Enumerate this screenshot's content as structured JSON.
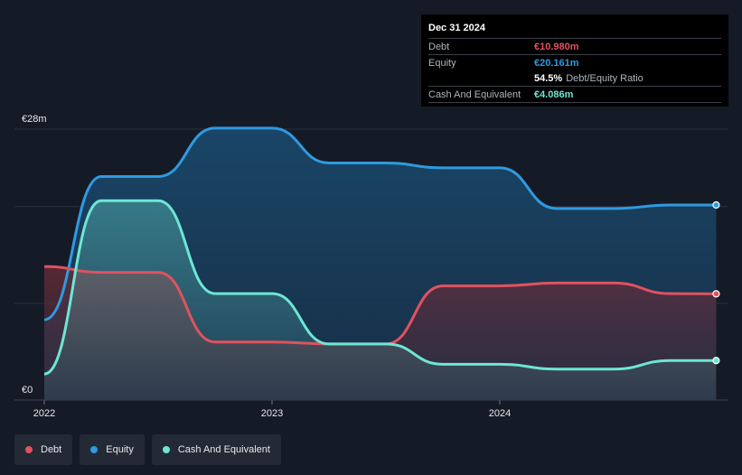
{
  "chart_data": {
    "type": "area",
    "x_axis_labels": [
      "2022",
      "2023",
      "2024"
    ],
    "y_axis_labels": [
      "€28m",
      "€0"
    ],
    "ylim": [
      0,
      28
    ],
    "x_range": [
      2021.95,
      2024.95
    ],
    "unit": "€m",
    "grid": true,
    "legend_position": "bottom-left",
    "series": [
      {
        "name": "Debt",
        "color": "#e0525f",
        "points": [
          [
            2022.0,
            13.8
          ],
          [
            2022.25,
            13.2
          ],
          [
            2022.5,
            13.2
          ],
          [
            2022.75,
            6.0
          ],
          [
            2023.0,
            6.0
          ],
          [
            2023.25,
            5.8
          ],
          [
            2023.5,
            5.8
          ],
          [
            2023.75,
            11.8
          ],
          [
            2024.0,
            11.8
          ],
          [
            2024.25,
            12.1
          ],
          [
            2024.5,
            12.1
          ],
          [
            2024.75,
            11.0
          ],
          [
            2024.95,
            10.98
          ]
        ]
      },
      {
        "name": "Equity",
        "color": "#2f9ae0",
        "points": [
          [
            2022.0,
            8.3
          ],
          [
            2022.25,
            23.1
          ],
          [
            2022.5,
            23.1
          ],
          [
            2022.75,
            28.1
          ],
          [
            2023.0,
            28.1
          ],
          [
            2023.25,
            24.5
          ],
          [
            2023.5,
            24.5
          ],
          [
            2023.75,
            24.0
          ],
          [
            2024.0,
            24.0
          ],
          [
            2024.25,
            19.8
          ],
          [
            2024.5,
            19.8
          ],
          [
            2024.75,
            20.16
          ],
          [
            2024.95,
            20.161
          ]
        ]
      },
      {
        "name": "Cash And Equivalent",
        "color": "#6ee6d4",
        "points": [
          [
            2022.0,
            2.7
          ],
          [
            2022.25,
            20.6
          ],
          [
            2022.5,
            20.6
          ],
          [
            2022.75,
            11.0
          ],
          [
            2023.0,
            11.0
          ],
          [
            2023.25,
            5.8
          ],
          [
            2023.5,
            5.8
          ],
          [
            2023.75,
            3.7
          ],
          [
            2024.0,
            3.7
          ],
          [
            2024.25,
            3.2
          ],
          [
            2024.5,
            3.2
          ],
          [
            2024.75,
            4.086
          ],
          [
            2024.95,
            4.086
          ]
        ]
      }
    ]
  },
  "tooltip": {
    "date": "Dec 31 2024",
    "rows": [
      {
        "label": "Debt",
        "value": "€10.980m",
        "color": "#e0525f"
      },
      {
        "label": "Equity",
        "value": "€20.161m",
        "color": "#2f9ae0"
      }
    ],
    "ratio_value": "54.5%",
    "ratio_label": "Debt/Equity Ratio",
    "cash": {
      "label": "Cash And Equivalent",
      "value": "€4.086m",
      "color": "#6ee6d4"
    }
  },
  "legend": [
    {
      "label": "Debt",
      "color": "#e0525f"
    },
    {
      "label": "Equity",
      "color": "#2f9ae0"
    },
    {
      "label": "Cash And Equivalent",
      "color": "#6ee6d4"
    }
  ]
}
